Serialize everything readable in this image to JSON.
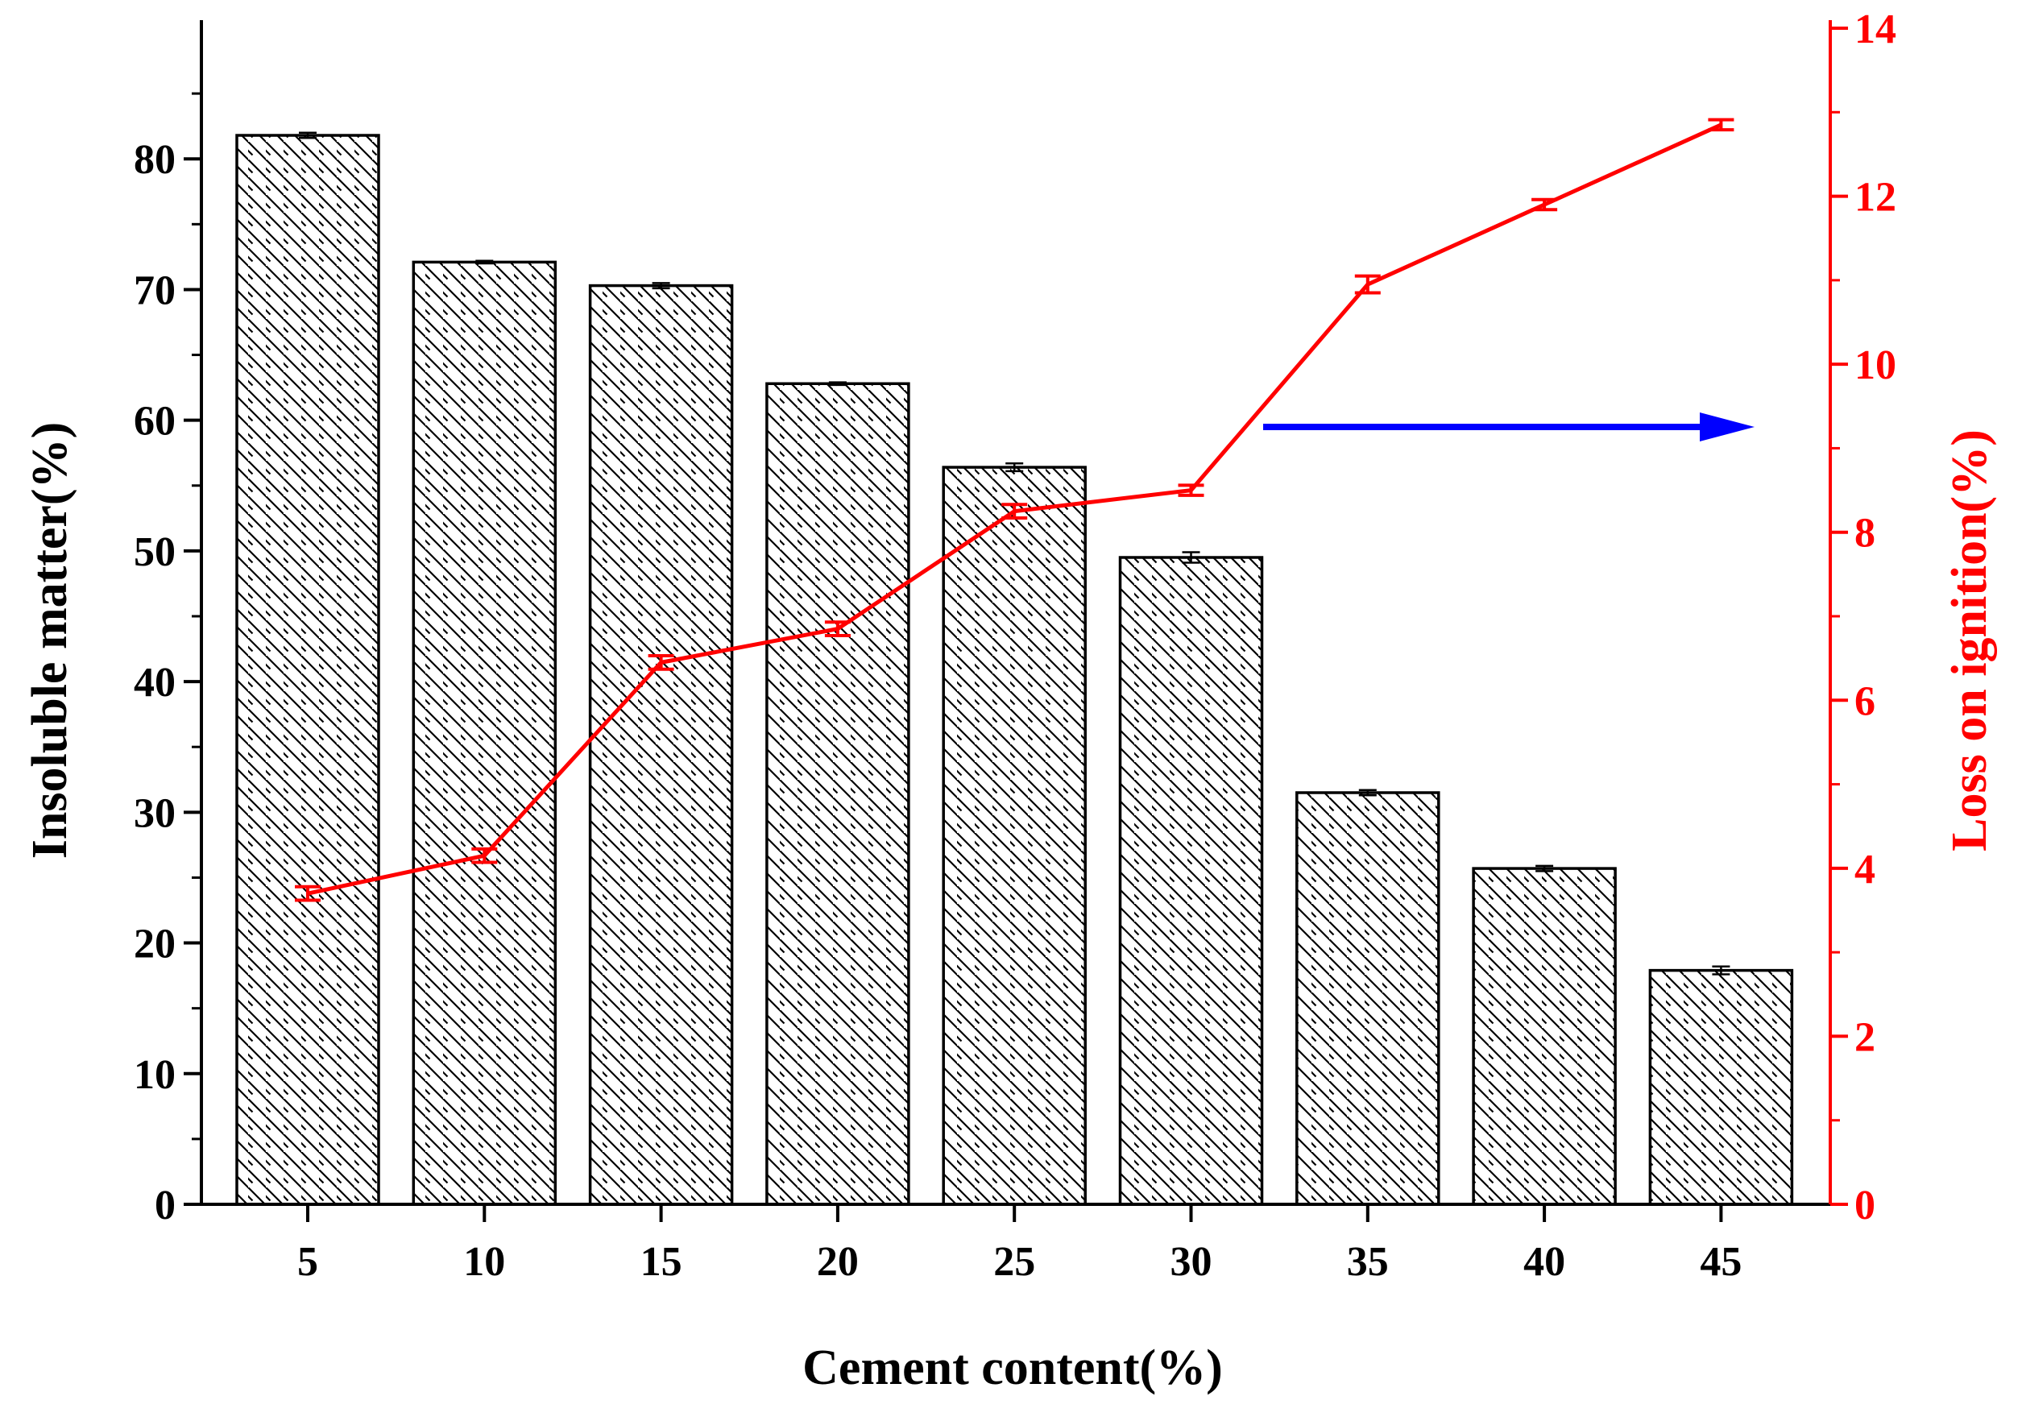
{
  "chart_data": {
    "type": "bar",
    "xlabel": "Cement content(%)",
    "ylabel": "Insoluble matter(%)",
    "y2label": "Loss on ignition(%)",
    "categories": [
      "5",
      "10",
      "15",
      "20",
      "25",
      "30",
      "35",
      "40",
      "45"
    ],
    "ylim": [
      0,
      90
    ],
    "y2lim": [
      0,
      14
    ],
    "yticks": [
      0,
      10,
      20,
      30,
      40,
      50,
      60,
      70,
      80
    ],
    "y2ticks": [
      0,
      2,
      4,
      6,
      8,
      10,
      12,
      14
    ],
    "grid": false,
    "series": [
      {
        "type": "bar",
        "axis": "left",
        "pattern": "diagonal-hatch",
        "values": [
          81.8,
          72.1,
          70.3,
          62.8,
          56.4,
          49.5,
          31.5,
          25.7,
          17.9
        ],
        "errors": [
          0.2,
          0.1,
          0.2,
          0.1,
          0.3,
          0.4,
          0.2,
          0.2,
          0.3
        ]
      },
      {
        "type": "line",
        "axis": "right",
        "values": [
          3.7,
          4.15,
          6.45,
          6.85,
          8.25,
          8.5,
          10.95,
          11.9,
          12.85
        ],
        "errors": [
          0.08,
          0.08,
          0.08,
          0.08,
          0.08,
          0.06,
          0.1,
          0.06,
          0.06
        ]
      }
    ],
    "annotation": {
      "kind": "arrow",
      "direction": "right",
      "meaning": "line series reads against right axis"
    },
    "colors": {
      "bar_fill": "#ffffff",
      "bar_stroke": "#000000",
      "line": "#ff0000",
      "right_axis": "#ff0000",
      "arrow": "#0000ff"
    }
  }
}
